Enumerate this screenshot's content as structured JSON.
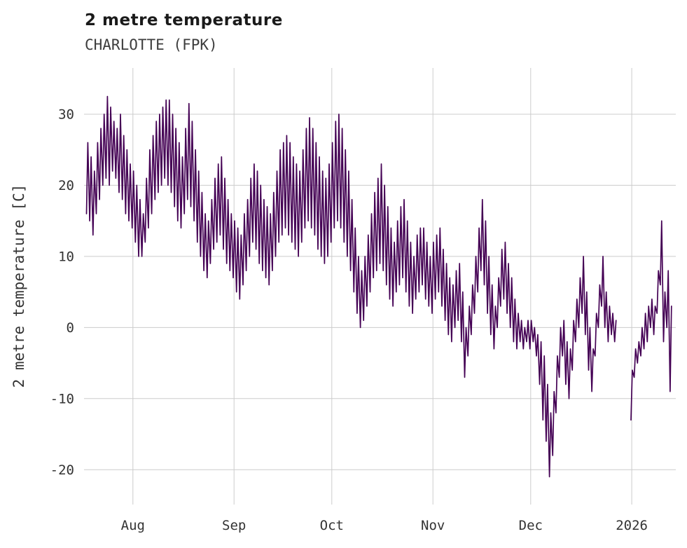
{
  "chart_data": {
    "type": "line",
    "title": "2 metre temperature",
    "subtitle": "CHARLOTTE (FPK)",
    "xlabel": "",
    "ylabel": "2 metre temperature [C]",
    "line_color": "#440154",
    "grid": true,
    "grid_color": "#cccccc",
    "legend": "none",
    "x_tick_labels": [
      "Aug",
      "Sep",
      "Oct",
      "Nov",
      "Dec",
      "2026"
    ],
    "x_tick_days": [
      14.5,
      45.5,
      75.5,
      106.5,
      136.5,
      167.5
    ],
    "y_ticks": [
      -20,
      -10,
      0,
      10,
      20,
      30
    ],
    "ylim": [
      -24.9,
      36.5
    ],
    "xlim_days": [
      -0.5,
      181
    ],
    "x_unit": "days from start of plotted series (mid-July) to mid-January",
    "daily": {
      "note": "estimated daily minimum and maximum 2 m temperature read from the plot; null = data gap in late December",
      "min": [
        16,
        15,
        13,
        16,
        18,
        20,
        21,
        20,
        22,
        21,
        19,
        18,
        16,
        15,
        14,
        12,
        10,
        10,
        12,
        14,
        16,
        18,
        19,
        20,
        21,
        20,
        19,
        17,
        15,
        14,
        16,
        18,
        17,
        15,
        12,
        10,
        8,
        7,
        9,
        11,
        12,
        13,
        11,
        9,
        8,
        7,
        5,
        4,
        6,
        8,
        10,
        12,
        11,
        9,
        8,
        7,
        6,
        8,
        10,
        12,
        13,
        14,
        13,
        12,
        11,
        10,
        12,
        14,
        15,
        14,
        13,
        11,
        10,
        9,
        10,
        12,
        14,
        15,
        14,
        12,
        10,
        8,
        5,
        2,
        0,
        1,
        3,
        5,
        7,
        8,
        9,
        8,
        6,
        4,
        3,
        5,
        6,
        7,
        5,
        3,
        2,
        4,
        5,
        6,
        4,
        3,
        2,
        4,
        5,
        3,
        1,
        -1,
        -2,
        0,
        1,
        -2,
        -7,
        -4,
        -1,
        2,
        5,
        8,
        6,
        2,
        -1,
        -3,
        0,
        3,
        4,
        2,
        0,
        -2,
        -3,
        -2,
        -3,
        -2,
        -3,
        -2,
        -4,
        -8,
        -13,
        -16,
        -21,
        -18,
        -12,
        -7,
        -4,
        -8,
        -10,
        -6,
        -2,
        0,
        2,
        -1,
        -6,
        -9,
        -4,
        0,
        3,
        0,
        -2,
        -1,
        -2,
        null,
        null,
        null,
        null,
        -13,
        -7,
        -5,
        -4,
        -3,
        -2,
        0,
        -1,
        2,
        6,
        -2,
        0,
        -9
      ],
      "max": [
        26,
        24,
        22,
        26,
        28,
        30,
        32.5,
        31,
        29,
        28,
        30,
        27,
        25,
        23,
        22,
        20,
        18,
        16,
        21,
        25,
        27,
        29,
        30,
        31,
        32,
        32,
        30,
        28,
        26,
        24,
        28,
        31.5,
        29,
        25,
        22,
        19,
        16,
        15,
        18,
        21,
        23,
        24,
        21,
        18,
        16,
        15,
        14,
        13,
        16,
        18,
        21,
        23,
        22,
        20,
        18,
        17,
        16,
        19,
        22,
        25,
        26,
        27,
        26,
        24,
        23,
        22,
        25,
        28,
        29.5,
        28,
        26,
        24,
        22,
        21,
        23,
        26,
        29,
        30,
        28,
        25,
        22,
        18,
        14,
        10,
        8,
        10,
        13,
        16,
        19,
        21,
        23,
        20,
        17,
        14,
        12,
        15,
        17,
        18,
        15,
        12,
        10,
        13,
        14,
        14,
        12,
        10,
        12,
        13,
        14,
        11,
        9,
        7,
        6,
        8,
        9,
        5,
        0,
        3,
        6,
        10,
        14,
        18,
        15,
        10,
        6,
        3,
        7,
        11,
        12,
        9,
        7,
        4,
        2,
        1,
        0,
        1,
        1,
        0,
        -1,
        -2,
        -4,
        -8,
        -12,
        -9,
        -4,
        0,
        1,
        -2,
        -3,
        1,
        4,
        7,
        10,
        5,
        0,
        -3,
        2,
        6,
        10,
        5,
        3,
        2,
        1,
        null,
        null,
        null,
        null,
        -6,
        -3,
        -2,
        0,
        2,
        3,
        4,
        3,
        8,
        15,
        5,
        8,
        3
      ]
    }
  }
}
